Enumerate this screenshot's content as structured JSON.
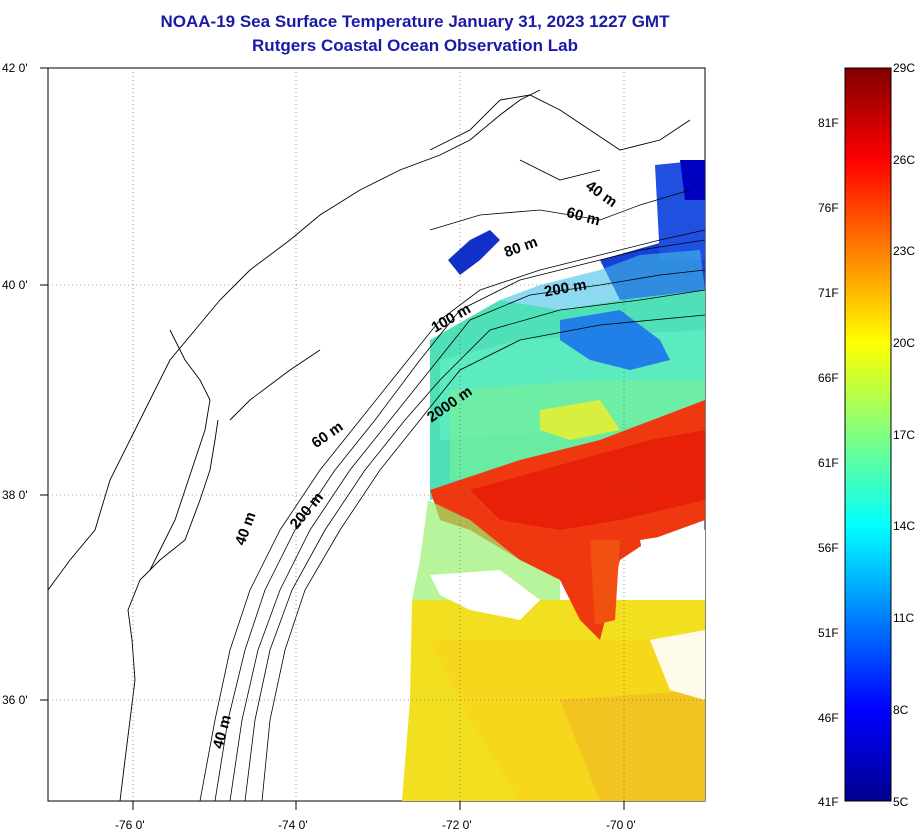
{
  "title": {
    "line1": "NOAA-19 Sea Surface Temperature January 31, 2023 1227 GMT",
    "line2": "Rutgers Coastal Ocean Observation Lab"
  },
  "axes": {
    "latitude_labels": [
      "42 0'",
      "40 0'",
      "38 0'",
      "36 0'"
    ],
    "longitude_labels": [
      "-76 0'",
      "-74 0'",
      "-72 0'",
      "-70 0'"
    ]
  },
  "isobath_labels": [
    "40 m",
    "60 m",
    "80 m",
    "200 m",
    "100 m",
    "2000 m",
    "60 m",
    "200 m",
    "40 m",
    "40 m"
  ],
  "colorbar": {
    "fahrenheit": [
      "81F",
      "76F",
      "71F",
      "66F",
      "61F",
      "56F",
      "51F",
      "46F",
      "41F"
    ],
    "celsius": [
      "29C",
      "26C",
      "23C",
      "20C",
      "17C",
      "14C",
      "11C",
      "8C",
      "5C"
    ],
    "min_c": 5,
    "max_c": 29
  },
  "colors": {
    "title": "#1a1aa6",
    "cold": "#00008f",
    "warm": "#800000"
  }
}
